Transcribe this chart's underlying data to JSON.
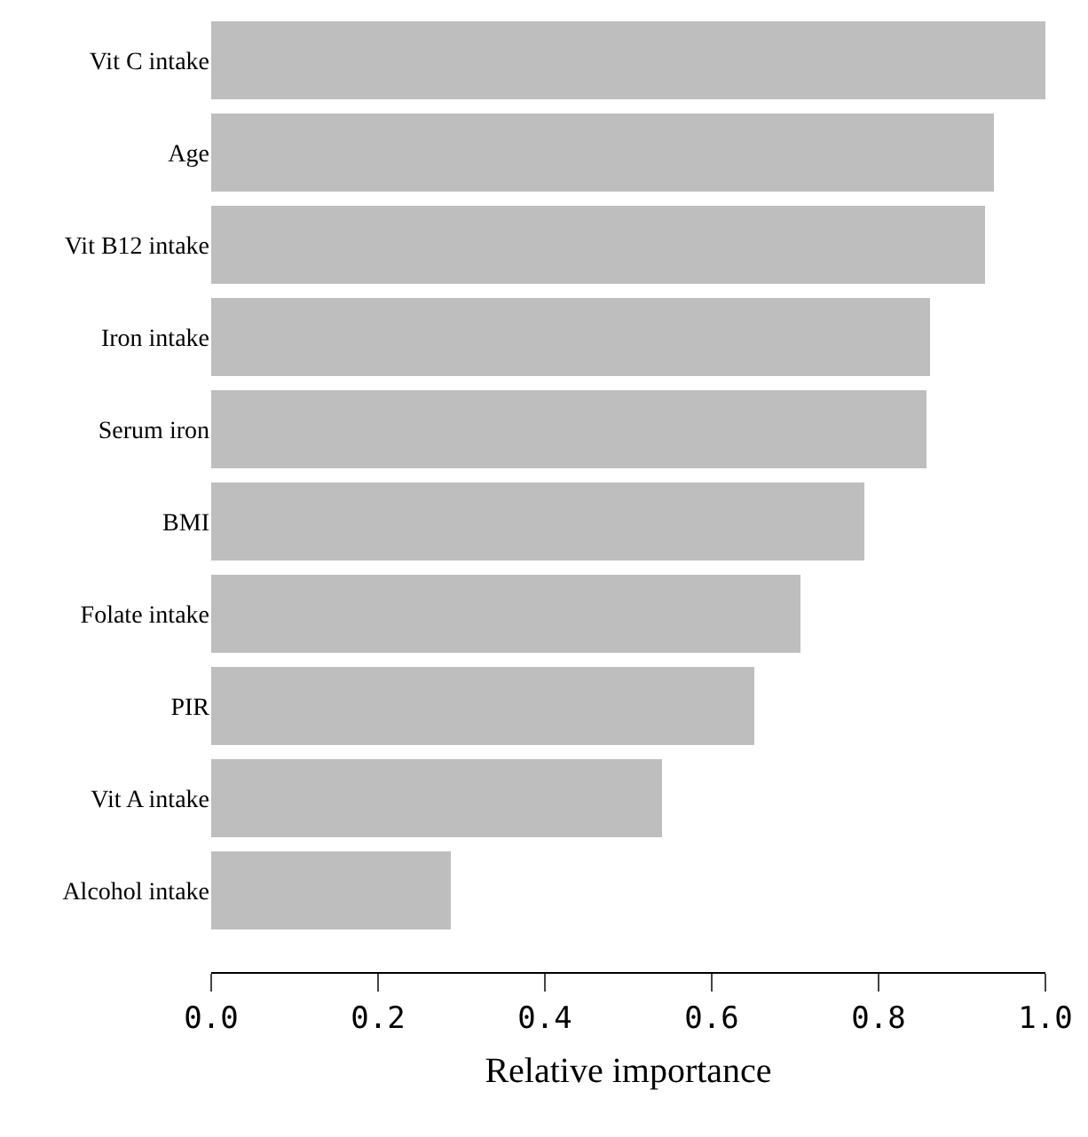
{
  "chart_data": {
    "type": "bar",
    "orientation": "horizontal",
    "xlabel": "Relative importance",
    "categories": [
      "Vit C intake",
      "Age",
      "Vit B12 intake",
      "Iron intake",
      "Serum iron",
      "BMI",
      "Folate intake",
      "PIR",
      "Vit A intake",
      "Alcohol intake"
    ],
    "values": [
      1.0,
      0.939,
      0.927,
      0.862,
      0.857,
      0.784,
      0.707,
      0.65,
      0.541,
      0.287
    ],
    "color": "#bebebe",
    "xlim": [
      0,
      1
    ],
    "xticks": [
      {
        "value": 0,
        "label": "0.0"
      },
      {
        "value": 0.2,
        "label": "0.2"
      },
      {
        "value": 0.4,
        "label": "0.4"
      },
      {
        "value": 0.6,
        "label": "0.6"
      },
      {
        "value": 0.8,
        "label": "0.8"
      },
      {
        "value": 1.0,
        "label": "1.0"
      }
    ],
    "legend": false
  }
}
